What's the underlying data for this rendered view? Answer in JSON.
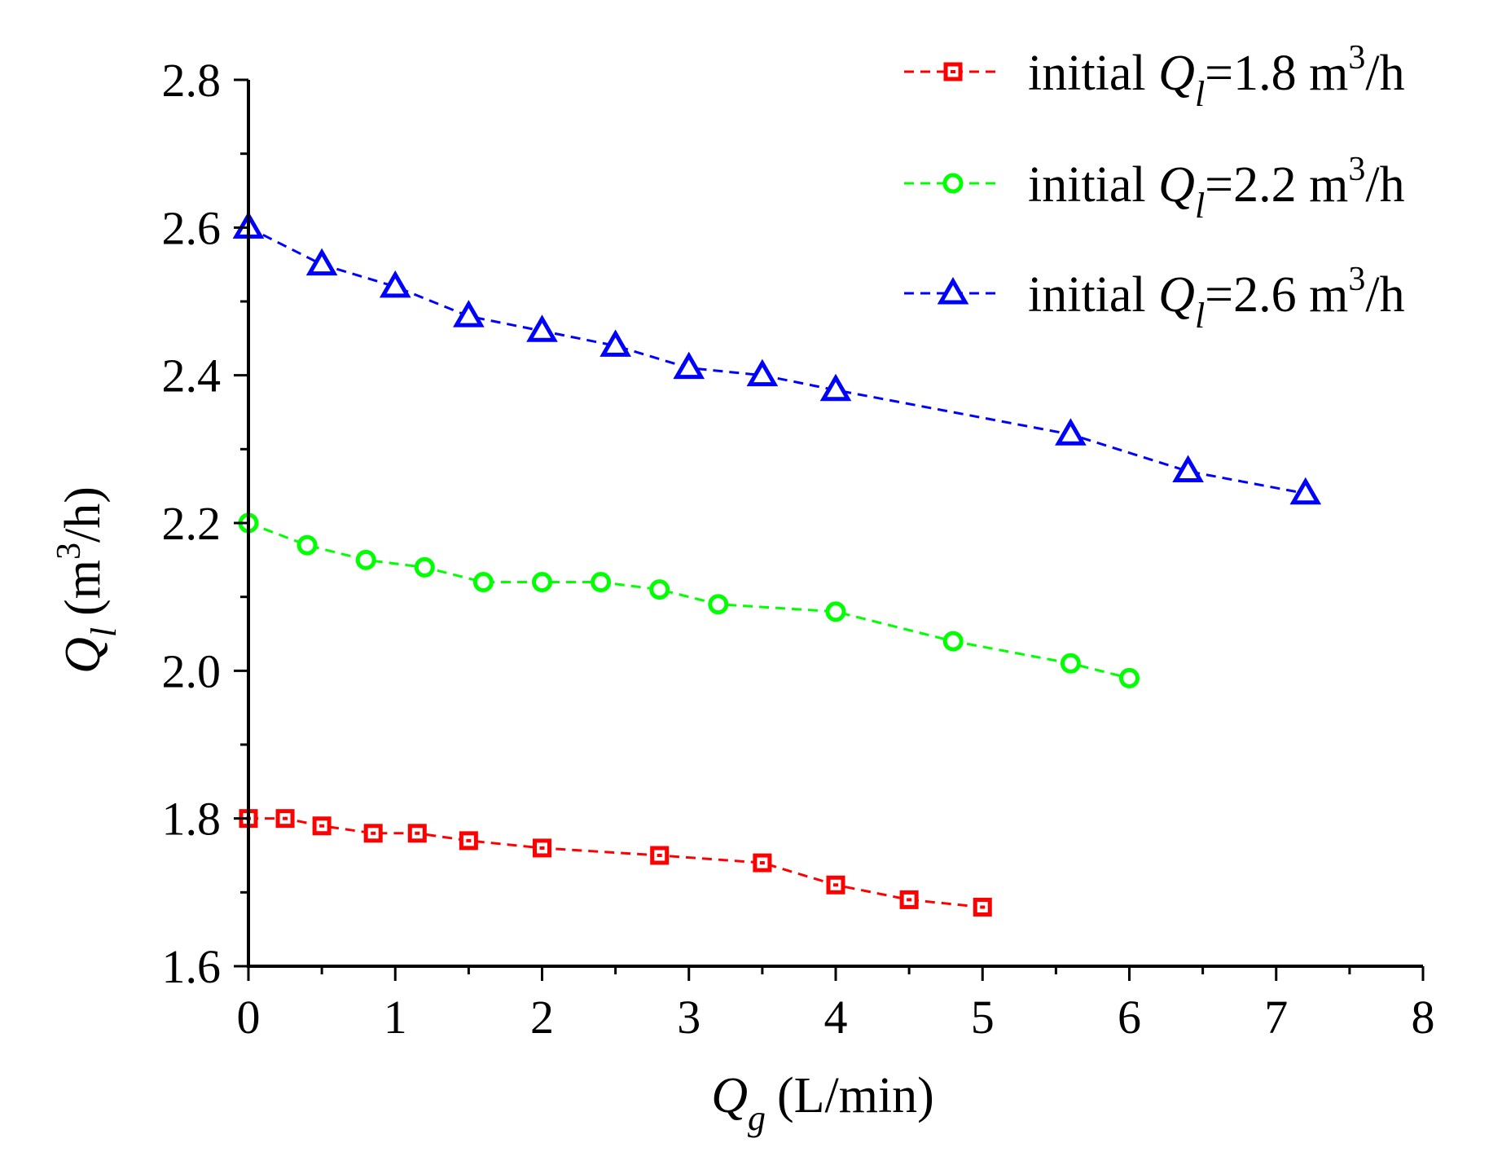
{
  "chart_data": {
    "type": "line",
    "title": "",
    "xlabel": {
      "symbol": "Q",
      "subscript": "g",
      "unit": "(L/min)"
    },
    "ylabel": {
      "symbol": "Q",
      "subscript": "l",
      "unit_open": "(m",
      "unit_sup": "3",
      "unit_close": "/h)"
    },
    "xlim": [
      0,
      8
    ],
    "ylim": [
      1.6,
      2.8
    ],
    "xticks": [
      0,
      1,
      2,
      3,
      4,
      5,
      6,
      7,
      8
    ],
    "xtick_labels": [
      "0",
      "1",
      "2",
      "3",
      "4",
      "5",
      "6",
      "7",
      "8"
    ],
    "yticks": [
      1.6,
      1.8,
      2.0,
      2.2,
      2.4,
      2.6,
      2.8
    ],
    "ytick_labels": [
      "1.6",
      "1.8",
      "2.0",
      "2.2",
      "2.4",
      "2.6",
      "2.8"
    ],
    "legend_position": "top-right",
    "grid": false,
    "series": [
      {
        "name": "initial Ql=1.8 m3/h",
        "legend_prefix": "initial ",
        "legend_symbol": "Q",
        "legend_sub": "l",
        "legend_value": "=1.8 m",
        "legend_sup": "3",
        "legend_unit": "/h",
        "color": "#ff0000",
        "marker": "square",
        "x": [
          0,
          0.25,
          0.5,
          0.85,
          1.15,
          1.5,
          2.0,
          2.8,
          3.5,
          4.0,
          4.5,
          5.0
        ],
        "y": [
          1.8,
          1.8,
          1.79,
          1.78,
          1.78,
          1.77,
          1.76,
          1.75,
          1.74,
          1.71,
          1.69,
          1.68
        ]
      },
      {
        "name": "initial Ql=2.2 m3/h",
        "legend_prefix": "initial ",
        "legend_symbol": "Q",
        "legend_sub": "l",
        "legend_value": "=2.2 m",
        "legend_sup": "3",
        "legend_unit": "/h",
        "color": "#00ff00",
        "marker": "circle",
        "x": [
          0,
          0.4,
          0.8,
          1.2,
          1.6,
          2.0,
          2.4,
          2.8,
          3.2,
          4.0,
          4.8,
          5.6,
          6.0
        ],
        "y": [
          2.2,
          2.17,
          2.15,
          2.14,
          2.12,
          2.12,
          2.12,
          2.11,
          2.09,
          2.08,
          2.04,
          2.01,
          1.99
        ]
      },
      {
        "name": "initial Ql=2.6 m3/h",
        "legend_prefix": "initial ",
        "legend_symbol": "Q",
        "legend_sub": "l",
        "legend_value": "=2.6 m",
        "legend_sup": "3",
        "legend_unit": "/h",
        "color": "#0000ff",
        "marker": "triangle",
        "x": [
          0,
          0.5,
          1.0,
          1.5,
          2.0,
          2.5,
          3.0,
          3.5,
          4.0,
          5.6,
          6.4,
          7.2
        ],
        "y": [
          2.6,
          2.55,
          2.52,
          2.48,
          2.46,
          2.44,
          2.41,
          2.4,
          2.38,
          2.32,
          2.27,
          2.24
        ]
      }
    ]
  }
}
